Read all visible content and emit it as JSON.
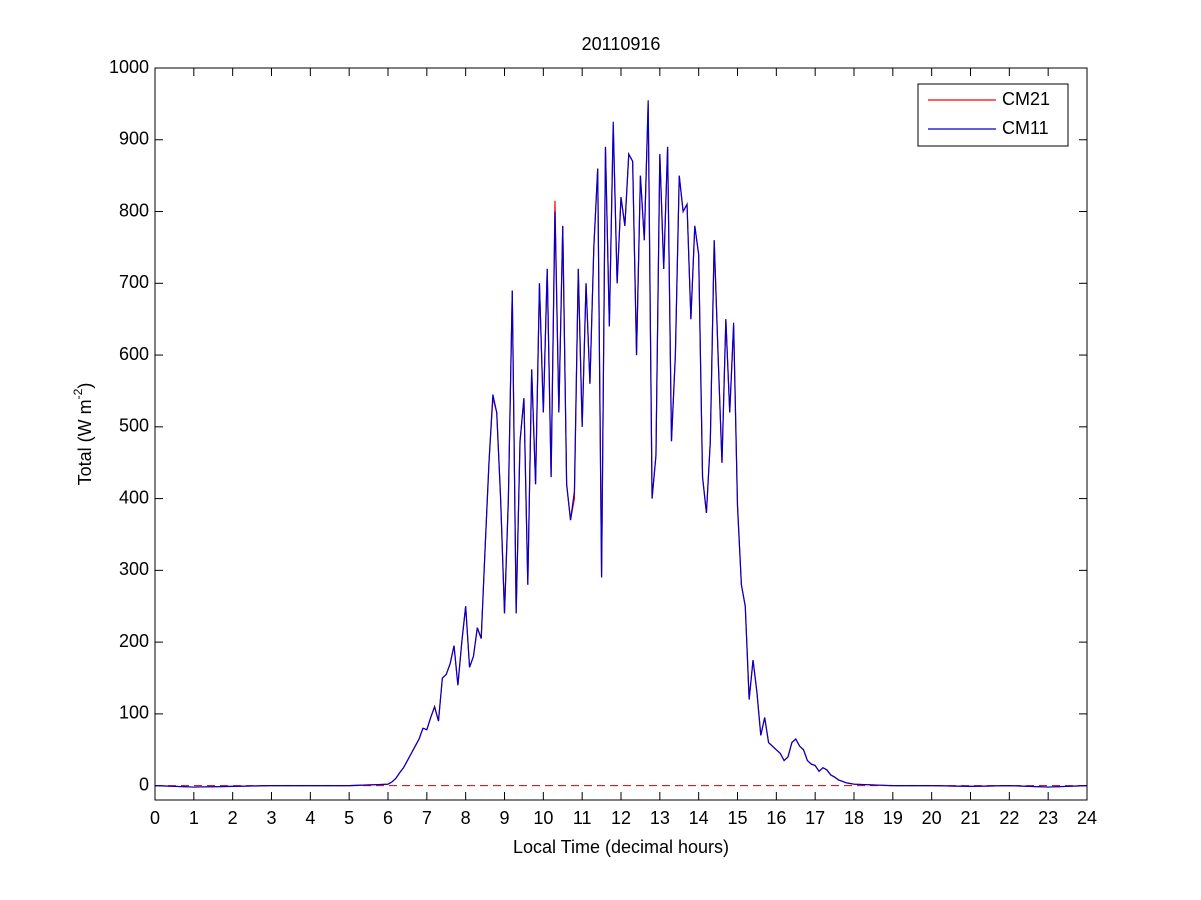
{
  "chart_data": {
    "type": "line",
    "title": "20110916",
    "xlabel": "Local Time (decimal hours)",
    "ylabel": [
      "Total (W m",
      "-2",
      ")"
    ],
    "x": [
      0,
      1,
      2,
      3,
      4,
      5,
      6,
      6.1,
      6.2,
      6.3,
      6.4,
      6.5,
      6.6,
      6.7,
      6.8,
      6.9,
      7,
      7.1,
      7.2,
      7.3,
      7.4,
      7.5,
      7.6,
      7.7,
      7.8,
      7.9,
      8,
      8.1,
      8.2,
      8.3,
      8.4,
      8.5,
      8.6,
      8.7,
      8.8,
      8.9,
      9,
      9.1,
      9.2,
      9.3,
      9.4,
      9.5,
      9.6,
      9.7,
      9.8,
      9.9,
      10,
      10.1,
      10.2,
      10.3,
      10.4,
      10.5,
      10.6,
      10.7,
      10.8,
      10.9,
      11,
      11.1,
      11.2,
      11.3,
      11.4,
      11.5,
      11.6,
      11.7,
      11.8,
      11.9,
      12,
      12.1,
      12.2,
      12.3,
      12.4,
      12.5,
      12.6,
      12.7,
      12.8,
      12.9,
      13,
      13.1,
      13.2,
      13.3,
      13.4,
      13.5,
      13.6,
      13.7,
      13.8,
      13.9,
      14,
      14.1,
      14.2,
      14.3,
      14.4,
      14.5,
      14.6,
      14.7,
      14.8,
      14.9,
      15,
      15.1,
      15.2,
      15.3,
      15.4,
      15.5,
      15.6,
      15.7,
      15.8,
      15.9,
      16,
      16.1,
      16.2,
      16.3,
      16.4,
      16.5,
      16.6,
      16.7,
      16.8,
      16.9,
      17,
      17.1,
      17.2,
      17.3,
      17.4,
      17.5,
      17.6,
      17.7,
      17.8,
      17.9,
      18,
      19,
      20,
      21,
      22,
      23,
      24
    ],
    "series": [
      {
        "name": "CM21",
        "color": "#ff0000",
        "values": [
          0,
          -2,
          -1,
          0,
          0,
          0,
          2,
          5,
          10,
          18,
          25,
          35,
          45,
          55,
          65,
          80,
          78,
          95,
          110,
          90,
          150,
          155,
          170,
          195,
          140,
          200,
          250,
          165,
          180,
          220,
          205,
          330,
          450,
          540,
          520,
          400,
          240,
          400,
          690,
          240,
          480,
          540,
          280,
          580,
          420,
          700,
          520,
          720,
          430,
          815,
          520,
          780,
          420,
          370,
          400,
          720,
          500,
          700,
          560,
          750,
          860,
          290,
          890,
          640,
          920,
          700,
          820,
          780,
          880,
          870,
          600,
          850,
          760,
          950,
          400,
          460,
          880,
          720,
          890,
          480,
          600,
          850,
          800,
          810,
          650,
          780,
          740,
          430,
          380,
          480,
          760,
          600,
          450,
          650,
          520,
          640,
          390,
          280,
          250,
          120,
          175,
          130,
          70,
          95,
          60,
          55,
          50,
          45,
          35,
          40,
          60,
          65,
          55,
          50,
          35,
          30,
          28,
          20,
          25,
          22,
          15,
          12,
          8,
          6,
          4,
          3,
          2,
          0,
          0,
          -1,
          0,
          -2,
          0
        ]
      },
      {
        "name": "CM11",
        "color": "#0000cc",
        "values": [
          0,
          -2,
          -1,
          0,
          0,
          0,
          2,
          5,
          10,
          18,
          25,
          35,
          45,
          55,
          65,
          80,
          78,
          95,
          110,
          90,
          150,
          155,
          170,
          195,
          140,
          200,
          250,
          165,
          180,
          220,
          205,
          330,
          450,
          545,
          520,
          400,
          240,
          400,
          690,
          240,
          480,
          540,
          280,
          580,
          420,
          700,
          520,
          720,
          430,
          800,
          520,
          780,
          420,
          370,
          410,
          720,
          500,
          700,
          560,
          750,
          860,
          290,
          890,
          640,
          925,
          700,
          820,
          780,
          880,
          870,
          600,
          850,
          760,
          955,
          400,
          460,
          880,
          720,
          890,
          480,
          600,
          850,
          800,
          810,
          650,
          780,
          740,
          430,
          380,
          480,
          760,
          600,
          450,
          650,
          520,
          645,
          390,
          280,
          250,
          120,
          175,
          130,
          70,
          95,
          60,
          55,
          50,
          45,
          35,
          40,
          60,
          65,
          55,
          50,
          35,
          30,
          28,
          20,
          25,
          22,
          15,
          12,
          8,
          6,
          4,
          3,
          2,
          0,
          0,
          -1,
          0,
          -2,
          0
        ]
      }
    ],
    "hline": {
      "value": 0,
      "color": "#cc0000"
    },
    "xlim": [
      0,
      24
    ],
    "xticks": [
      0,
      1,
      2,
      3,
      4,
      5,
      6,
      7,
      8,
      9,
      10,
      11,
      12,
      13,
      14,
      15,
      16,
      17,
      18,
      19,
      20,
      21,
      22,
      23,
      24
    ],
    "ylim": [
      -20,
      1000
    ],
    "yticks": [
      0,
      100,
      200,
      300,
      400,
      500,
      600,
      700,
      800,
      900,
      1000
    ],
    "grid": false,
    "legend": "upper right"
  }
}
